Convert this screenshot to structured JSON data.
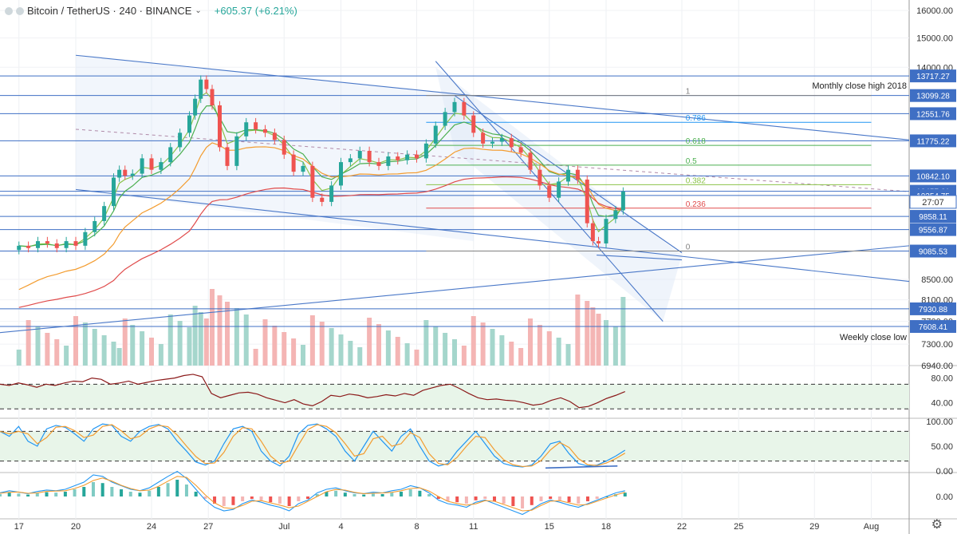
{
  "header": {
    "symbol": "Bitcoin / TetherUS · 240 · BINANCE",
    "change": "+605.37 (+6.21%)"
  },
  "colors": {
    "up": "#26a69a",
    "down": "#ef5350",
    "trend": "#4a78c8",
    "ema_red": "#e04b4b",
    "ema_orange": "#f39c2f",
    "ema_green": "#4caf50",
    "ema_lime": "#8bc34a",
    "bb": "#5aa9c8"
  },
  "chart_data": [
    {
      "type": "candlestick",
      "name": "BTCUSDT 4h",
      "x_ticks": [
        "17",
        "20",
        "24",
        "27",
        "Jul",
        "4",
        "8",
        "11",
        "15",
        "18",
        "22",
        "25",
        "29",
        "Aug"
      ],
      "x_tick_days": [
        17,
        20,
        24,
        27,
        31,
        34,
        38,
        41,
        45,
        48,
        52,
        55,
        59,
        62
      ],
      "price_scale": "log",
      "price_ticks": [
        16000,
        15000,
        14000,
        8500,
        8100,
        7700,
        7300,
        6940
      ],
      "price_tick_labels": [
        "16000.00",
        "15000.00",
        "14000.00",
        "8500.00",
        "8100.00",
        "7700.00",
        "7300.00",
        "6940.00"
      ],
      "ylim": [
        6940,
        16400
      ],
      "closes": [
        {
          "d": 17,
          "p": 9200
        },
        {
          "d": 17.5,
          "p": 9150
        },
        {
          "d": 18,
          "p": 9300
        },
        {
          "d": 18.5,
          "p": 9250
        },
        {
          "d": 19,
          "p": 9150
        },
        {
          "d": 19.5,
          "p": 9300
        },
        {
          "d": 20,
          "p": 9200
        },
        {
          "d": 20.5,
          "p": 9500
        },
        {
          "d": 21,
          "p": 9750
        },
        {
          "d": 21.5,
          "p": 10100
        },
        {
          "d": 22,
          "p": 10800
        },
        {
          "d": 22.3,
          "p": 11000
        },
        {
          "d": 22.6,
          "p": 10850
        },
        {
          "d": 23,
          "p": 10900
        },
        {
          "d": 23.5,
          "p": 11300
        },
        {
          "d": 24,
          "p": 11000
        },
        {
          "d": 24.5,
          "p": 11200
        },
        {
          "d": 25,
          "p": 11600
        },
        {
          "d": 25.5,
          "p": 12000
        },
        {
          "d": 26,
          "p": 12500
        },
        {
          "d": 26.3,
          "p": 13000
        },
        {
          "d": 26.6,
          "p": 13600
        },
        {
          "d": 26.9,
          "p": 13300
        },
        {
          "d": 27.2,
          "p": 12800
        },
        {
          "d": 27.6,
          "p": 11600
        },
        {
          "d": 28,
          "p": 11100
        },
        {
          "d": 28.5,
          "p": 11900
        },
        {
          "d": 29,
          "p": 12300
        },
        {
          "d": 29.5,
          "p": 12100
        },
        {
          "d": 30,
          "p": 12000
        },
        {
          "d": 30.5,
          "p": 11800
        },
        {
          "d": 31,
          "p": 11400
        },
        {
          "d": 31.5,
          "p": 10950
        },
        {
          "d": 32,
          "p": 11100
        },
        {
          "d": 32.5,
          "p": 10300
        },
        {
          "d": 33,
          "p": 10200
        },
        {
          "d": 33.5,
          "p": 10600
        },
        {
          "d": 34,
          "p": 11200
        },
        {
          "d": 34.5,
          "p": 11300
        },
        {
          "d": 35,
          "p": 11500
        },
        {
          "d": 35.5,
          "p": 11200
        },
        {
          "d": 36,
          "p": 11100
        },
        {
          "d": 36.5,
          "p": 11350
        },
        {
          "d": 37,
          "p": 11250
        },
        {
          "d": 37.5,
          "p": 11400
        },
        {
          "d": 38,
          "p": 11300
        },
        {
          "d": 38.5,
          "p": 11700
        },
        {
          "d": 39,
          "p": 12200
        },
        {
          "d": 39.5,
          "p": 12600
        },
        {
          "d": 40,
          "p": 12900
        },
        {
          "d": 40.5,
          "p": 12500
        },
        {
          "d": 41,
          "p": 12000
        },
        {
          "d": 41.5,
          "p": 11700
        },
        {
          "d": 42,
          "p": 11750
        },
        {
          "d": 42.5,
          "p": 11850
        },
        {
          "d": 43,
          "p": 11600
        },
        {
          "d": 43.5,
          "p": 11450
        },
        {
          "d": 44,
          "p": 11000
        },
        {
          "d": 44.5,
          "p": 10600
        },
        {
          "d": 45,
          "p": 10300
        },
        {
          "d": 45.5,
          "p": 10700
        },
        {
          "d": 46,
          "p": 11000
        },
        {
          "d": 46.5,
          "p": 10750
        },
        {
          "d": 47,
          "p": 9700
        },
        {
          "d": 47.3,
          "p": 9300
        },
        {
          "d": 47.6,
          "p": 9250
        },
        {
          "d": 48,
          "p": 9800
        },
        {
          "d": 48.5,
          "p": 10000
        },
        {
          "d": 48.9,
          "p": 10450
        }
      ],
      "horizontal_levels": [
        {
          "label": "13717.27",
          "price": 13717.27
        },
        {
          "label": "13099.28",
          "price": 13099.28
        },
        {
          "label": "12551.76",
          "price": 12551.76
        },
        {
          "label": "11775.22",
          "price": 11775.22
        },
        {
          "label": "10842.10",
          "price": 10842.1
        },
        {
          "label": "10457.61",
          "price": 10457.61
        },
        {
          "label": "10354.75",
          "price": 10354.75
        },
        {
          "label": "9858.11",
          "price": 9858.11
        },
        {
          "label": "9556.87",
          "price": 9556.87
        },
        {
          "label": "9085.53",
          "price": 9085.53
        },
        {
          "label": "7930.88",
          "price": 7930.88
        },
        {
          "label": "7608.41",
          "price": 7608.41
        }
      ],
      "countdown_label": "27:07",
      "fib_levels": [
        {
          "label": "1",
          "price": 13099.28
        },
        {
          "label": "0.786",
          "price": 12300
        },
        {
          "label": "0.618",
          "price": 11650
        },
        {
          "label": "0.5",
          "price": 11120
        },
        {
          "label": "0.382",
          "price": 10620
        },
        {
          "label": "0.236",
          "price": 10050
        },
        {
          "label": "0",
          "price": 9085.53
        }
      ],
      "annotations": [
        "Monthly close high 2018",
        "Weekly close low"
      ]
    },
    {
      "type": "line",
      "name": "RSI",
      "ticks": [
        "80.00",
        "40.00"
      ],
      "values": [
        70,
        68,
        72,
        69,
        65,
        70,
        68,
        72,
        75,
        74,
        80,
        78,
        70,
        72,
        75,
        70,
        73,
        76,
        78,
        80,
        84,
        86,
        82,
        55,
        48,
        52,
        56,
        57,
        54,
        48,
        44,
        40,
        45,
        38,
        35,
        42,
        52,
        50,
        54,
        52,
        48,
        50,
        53,
        51,
        55,
        52,
        60,
        64,
        68,
        70,
        63,
        55,
        48,
        45,
        46,
        44,
        43,
        40,
        36,
        38,
        44,
        48,
        42,
        32,
        34,
        40,
        47,
        52,
        58
      ]
    },
    {
      "type": "line",
      "name": "Stochastic RSI",
      "ticks": [
        "100.00",
        "50.00",
        "0.00"
      ],
      "values": [
        80,
        70,
        90,
        60,
        50,
        85,
        92,
        88,
        75,
        60,
        85,
        95,
        92,
        70,
        60,
        80,
        90,
        94,
        85,
        60,
        40,
        18,
        12,
        20,
        55,
        85,
        90,
        80,
        40,
        20,
        10,
        30,
        75,
        92,
        95,
        85,
        70,
        40,
        20,
        50,
        80,
        60,
        40,
        70,
        85,
        50,
        20,
        10,
        15,
        40,
        60,
        80,
        55,
        30,
        15,
        10,
        8,
        12,
        30,
        55,
        60,
        35,
        15,
        10,
        12,
        20,
        30,
        42
      ]
    },
    {
      "type": "bar",
      "name": "MACD",
      "ticks": [
        "0.00"
      ],
      "values": [
        5,
        8,
        6,
        4,
        7,
        9,
        8,
        10,
        15,
        20,
        30,
        28,
        20,
        15,
        10,
        8,
        12,
        20,
        28,
        35,
        25,
        10,
        -5,
        -15,
        -20,
        -18,
        -10,
        -5,
        -8,
        -12,
        -15,
        -20,
        -10,
        -5,
        5,
        10,
        12,
        8,
        5,
        4,
        6,
        5,
        8,
        10,
        15,
        12,
        5,
        -5,
        -10,
        -12,
        -15,
        -8,
        -5,
        -10,
        -15,
        -20,
        -25,
        -18,
        -10,
        -5,
        -8,
        -12,
        -15,
        -10,
        -5,
        0,
        5,
        8
      ]
    }
  ],
  "footer": {
    "settings_icon": "gear-icon"
  }
}
